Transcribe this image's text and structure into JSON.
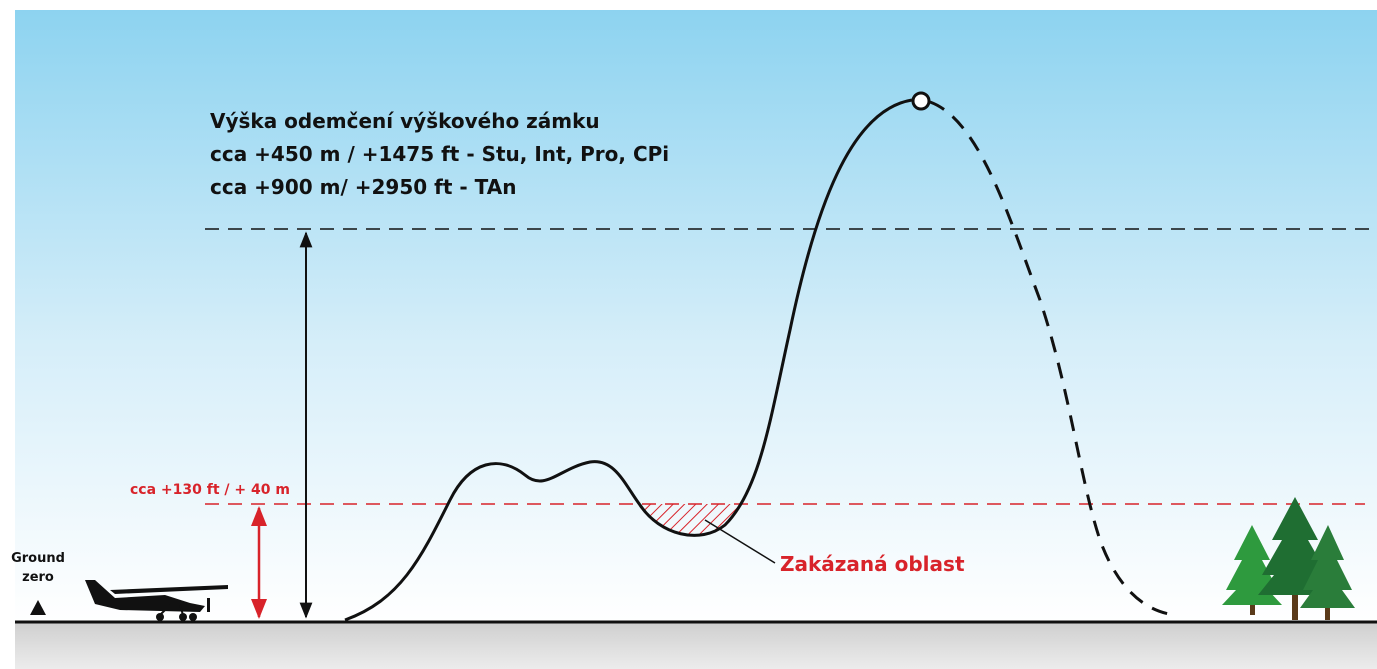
{
  "labels": {
    "unlock_title": "Výška odemčení výškového zámku",
    "unlock_lines": [
      "cca +450 m / +1475 ft - Stu, Int, Pro, CPi",
      "cca +900 m/ +2950 ft  - TAn"
    ],
    "min_height": "cca +130 ft / + 40 m",
    "ground_zero": [
      "Ground",
      "zero"
    ],
    "forbidden_zone": "Zakázaná oblast"
  }
}
